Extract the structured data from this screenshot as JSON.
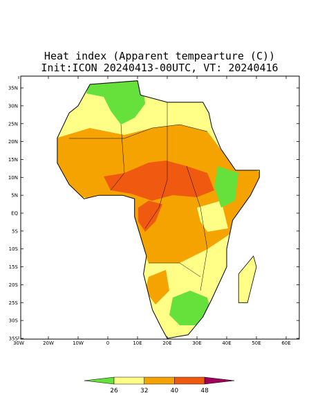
{
  "header": {
    "title": "Heat index (Apparent tempearture (C))",
    "subtitle": "Init:ICON 20240413-00UTC, VT: 20240416"
  },
  "map": {
    "lat_ticks": [
      {
        "value": 35,
        "label": "35N"
      },
      {
        "value": 30,
        "label": "30N"
      },
      {
        "value": 25,
        "label": "25N"
      },
      {
        "value": 20,
        "label": "20N"
      },
      {
        "value": 15,
        "label": "15N"
      },
      {
        "value": 10,
        "label": "10N"
      },
      {
        "value": 5,
        "label": "5N"
      },
      {
        "value": 0,
        "label": "EQ"
      },
      {
        "value": -5,
        "label": "5S"
      },
      {
        "value": -10,
        "label": "10S"
      },
      {
        "value": -15,
        "label": "15S"
      },
      {
        "value": -20,
        "label": "20S"
      },
      {
        "value": -25,
        "label": "25S"
      },
      {
        "value": -30,
        "label": "30S"
      },
      {
        "value": -35,
        "label": "35S"
      }
    ],
    "lon_ticks": [
      {
        "value": -30,
        "label": "30W"
      },
      {
        "value": -20,
        "label": "20W"
      },
      {
        "value": -10,
        "label": "10W"
      },
      {
        "value": 0,
        "label": "0"
      },
      {
        "value": 10,
        "label": "10E"
      },
      {
        "value": 20,
        "label": "20E"
      },
      {
        "value": 30,
        "label": "30E"
      },
      {
        "value": 40,
        "label": "40E"
      },
      {
        "value": 50,
        "label": "50E"
      },
      {
        "value": 60,
        "label": "60E"
      }
    ]
  },
  "colorbar": {
    "boundaries": [
      26,
      32,
      40,
      48
    ],
    "colors": [
      "#66e03a",
      "#ffff88",
      "#f5a300",
      "#f05a10",
      "#a0005a"
    ]
  }
}
